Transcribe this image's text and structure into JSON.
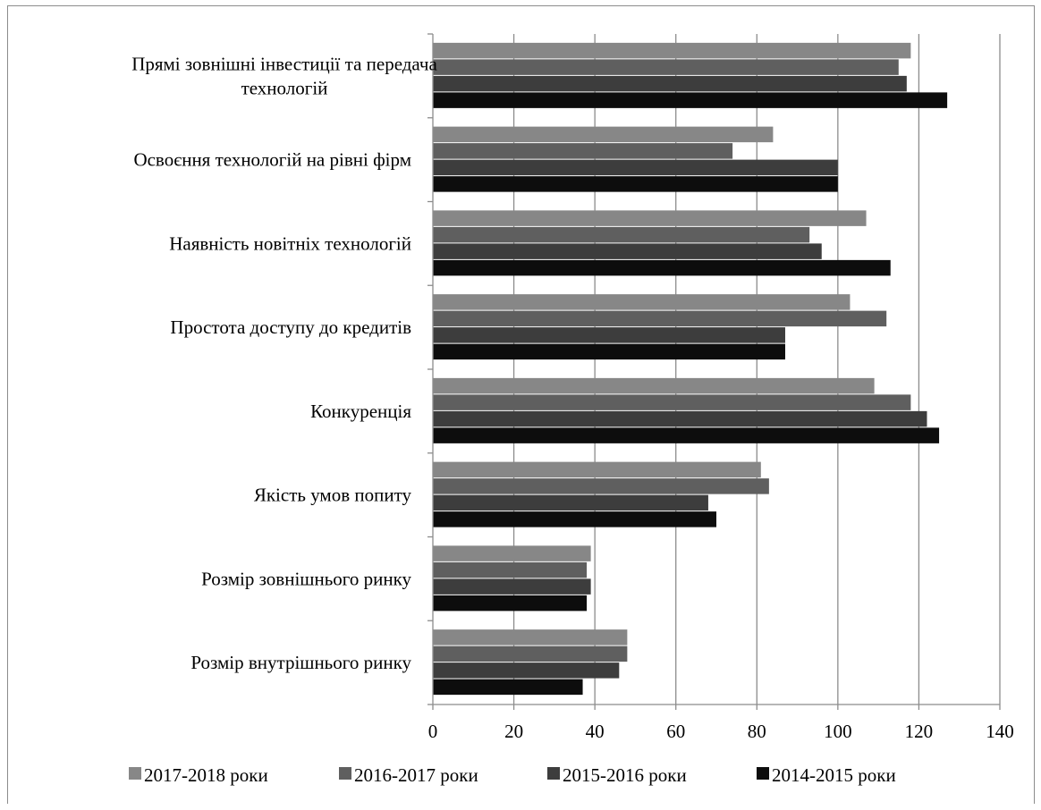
{
  "chart_data": {
    "type": "bar",
    "orientation": "horizontal",
    "categories": [
      "Прямі зовнішні інвестиції та передача технологій",
      "Освоєння технологій на рівні фірм",
      "Наявність новітніх технологій",
      "Простота доступу до кредитів",
      "Конкуренція",
      "Якість умов попиту",
      "Розмір зовнішнього ринку",
      "Розмір внутрішнього ринку"
    ],
    "category_lines": [
      [
        "Прямі зовнішні інвестиції та передача",
        "технологій"
      ],
      [
        "Освоєння технологій на рівні фірм"
      ],
      [
        "Наявність новітніх технологій"
      ],
      [
        "Простота доступу до кредитів"
      ],
      [
        "Конкуренція"
      ],
      [
        "Якість умов попиту"
      ],
      [
        "Розмір зовнішнього ринку"
      ],
      [
        "Розмір внутрішнього ринку"
      ]
    ],
    "series": [
      {
        "name": "2017-2018 роки",
        "color": "#878787",
        "values": [
          118,
          84,
          107,
          103,
          109,
          81,
          39,
          48
        ]
      },
      {
        "name": "2016-2017 роки",
        "color": "#5f5f5f",
        "values": [
          115,
          74,
          93,
          112,
          118,
          83,
          38,
          48
        ]
      },
      {
        "name": "2015-2016 роки",
        "color": "#3d3d3d",
        "values": [
          117,
          100,
          96,
          87,
          122,
          68,
          39,
          46
        ]
      },
      {
        "name": "2014-2015 роки",
        "color": "#0d0d0d",
        "values": [
          127,
          100,
          113,
          87,
          125,
          70,
          38,
          37
        ]
      }
    ],
    "xlim": [
      0,
      140
    ],
    "xticks": [
      "0",
      "20",
      "40",
      "60",
      "80",
      "100",
      "120",
      "140"
    ],
    "xlabel": "",
    "ylabel": "",
    "title": "",
    "grid": "vertical",
    "legend": "bottom"
  }
}
